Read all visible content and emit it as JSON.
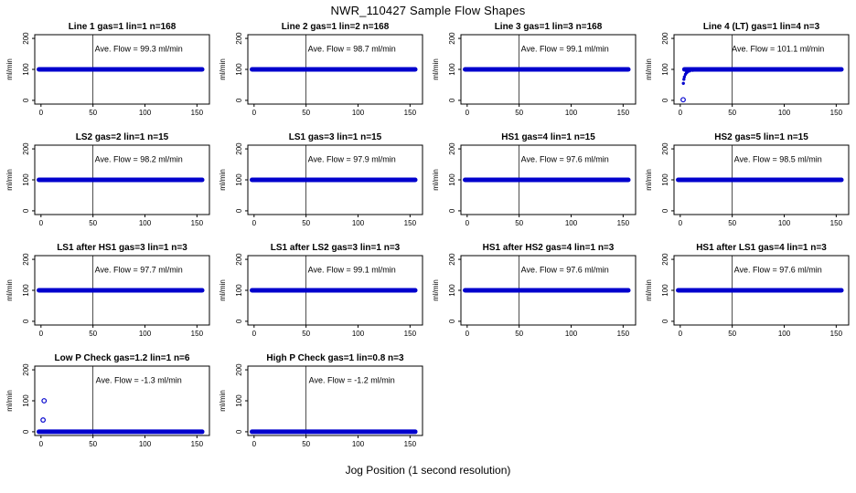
{
  "figure": {
    "title": "NWR_110427  Sample Flow Shapes",
    "xlabel": "Jog Position (1 second resolution)"
  },
  "chart_data": {
    "type": "scatter",
    "title": "NWR_110427  Sample Flow Shapes",
    "xlabel": "Jog Position (1 second resolution)",
    "ylabel": "ml/min",
    "x_ticks": [
      0,
      50,
      100,
      150
    ],
    "y_ticks": [
      0,
      100,
      200
    ],
    "xlim": [
      -6,
      162
    ],
    "ylim": [
      -12,
      212
    ],
    "vline_x": 50,
    "point_color": "#0000CD",
    "grid": "off",
    "legend": "none",
    "panels": [
      {
        "title": "Line 1 gas=1 lin=1 n=168",
        "ave_flow": 99.3,
        "ave_flow_label": "Ave. Flow =  99.3  ml/min",
        "band_y": 100,
        "band_x": [
          -2,
          155
        ],
        "ramp": [],
        "outliers": []
      },
      {
        "title": "Line 2 gas=1 lin=2 n=168",
        "ave_flow": 98.7,
        "ave_flow_label": "Ave. Flow =  98.7  ml/min",
        "band_y": 100,
        "band_x": [
          -2,
          155
        ],
        "ramp": [],
        "outliers": []
      },
      {
        "title": "Line 3 gas=1 lin=3 n=168",
        "ave_flow": 99.1,
        "ave_flow_label": "Ave. Flow =  99.1  ml/min",
        "band_y": 100,
        "band_x": [
          -2,
          155
        ],
        "ramp": [],
        "outliers": []
      },
      {
        "title": "Line 4 (LT) gas=1 lin=4 n=3",
        "ave_flow": 101.1,
        "ave_flow_label": "Ave. Flow =  101.1  ml/min",
        "band_y": 100,
        "band_x": [
          4,
          155
        ],
        "ramp": [
          [
            3,
            55
          ],
          [
            3.5,
            68
          ],
          [
            4,
            76
          ],
          [
            5,
            84
          ],
          [
            6,
            89
          ],
          [
            7,
            92
          ],
          [
            9,
            95
          ],
          [
            12,
            97
          ],
          [
            16,
            98
          ],
          [
            20,
            99
          ]
        ],
        "outliers": [
          [
            2.8,
            2
          ]
        ]
      },
      {
        "title": "LS2 gas=2 lin=1 n=15",
        "ave_flow": 98.2,
        "ave_flow_label": "Ave. Flow =  98.2  ml/min",
        "band_y": 100,
        "band_x": [
          -2,
          155
        ],
        "ramp": [],
        "outliers": []
      },
      {
        "title": "LS1 gas=3 lin=1 n=15",
        "ave_flow": 97.9,
        "ave_flow_label": "Ave. Flow =  97.9  ml/min",
        "band_y": 100,
        "band_x": [
          -2,
          155
        ],
        "ramp": [],
        "outliers": []
      },
      {
        "title": "HS1 gas=4 lin=1 n=15",
        "ave_flow": 97.6,
        "ave_flow_label": "Ave. Flow =  97.6  ml/min",
        "band_y": 100,
        "band_x": [
          -2,
          155
        ],
        "ramp": [],
        "outliers": []
      },
      {
        "title": "HS2 gas=5 lin=1 n=15",
        "ave_flow": 98.5,
        "ave_flow_label": "Ave. Flow =  98.5  ml/min",
        "band_y": 100,
        "band_x": [
          -2,
          155
        ],
        "ramp": [],
        "outliers": []
      },
      {
        "title": "LS1 after HS1 gas=3 lin=1 n=3",
        "ave_flow": 97.7,
        "ave_flow_label": "Ave. Flow =  97.7  ml/min",
        "band_y": 100,
        "band_x": [
          -2,
          155
        ],
        "ramp": [],
        "outliers": []
      },
      {
        "title": "LS1 after LS2 gas=3 lin=1 n=3",
        "ave_flow": 99.1,
        "ave_flow_label": "Ave. Flow =  99.1  ml/min",
        "band_y": 100,
        "band_x": [
          -2,
          155
        ],
        "ramp": [],
        "outliers": []
      },
      {
        "title": "HS1 after HS2 gas=4 lin=1 n=3",
        "ave_flow": 97.6,
        "ave_flow_label": "Ave. Flow =  97.6  ml/min",
        "band_y": 100,
        "band_x": [
          -2,
          155
        ],
        "ramp": [],
        "outliers": []
      },
      {
        "title": "HS1 after LS1 gas=4 lin=1 n=3",
        "ave_flow": 97.6,
        "ave_flow_label": "Ave. Flow =  97.6  ml/min",
        "band_y": 100,
        "band_x": [
          -2,
          155
        ],
        "ramp": [],
        "outliers": []
      },
      {
        "title": "Low P Check gas=1.2 lin=1 n=6",
        "ave_flow": -1.3,
        "ave_flow_label": "Ave. Flow =  -1.3  ml/min",
        "band_y": 0,
        "band_x": [
          -2,
          155
        ],
        "ramp": [],
        "outliers": [
          [
            3,
            100
          ],
          [
            2,
            38
          ]
        ]
      },
      {
        "title": "High P Check gas=1 lin=0.8 n=3",
        "ave_flow": -1.2,
        "ave_flow_label": "Ave. Flow =  -1.2  ml/min",
        "band_y": 0,
        "band_x": [
          -2,
          155
        ],
        "ramp": [],
        "outliers": []
      }
    ]
  }
}
